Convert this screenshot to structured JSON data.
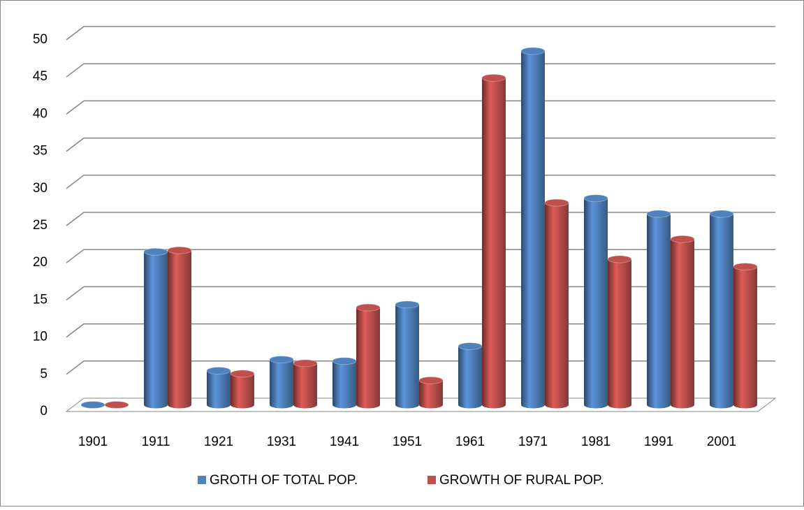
{
  "chart_data": {
    "type": "bar",
    "categories": [
      "1901",
      "1911",
      "1921",
      "1931",
      "1941",
      "1951",
      "1961",
      "1971",
      "1981",
      "1991",
      "2001"
    ],
    "series": [
      {
        "name": "GROTH OF TOTAL POP.",
        "color": "#4f81bd",
        "values": [
          0,
          20.6,
          4.6,
          6.1,
          5.9,
          13.5,
          7.9,
          47.6,
          27.8,
          25.7,
          25.7
        ]
      },
      {
        "name": "GROWTH OF RURAL POP.",
        "color": "#c0504d",
        "values": [
          0,
          20.8,
          4.2,
          5.6,
          13.1,
          3.3,
          44,
          27.2,
          19.6,
          22.3,
          18.6
        ]
      }
    ],
    "ylim": [
      0,
      50
    ],
    "yticks": [
      0,
      5,
      10,
      15,
      20,
      25,
      30,
      35,
      40,
      45,
      50
    ],
    "grid": true,
    "legend": "bottom"
  }
}
